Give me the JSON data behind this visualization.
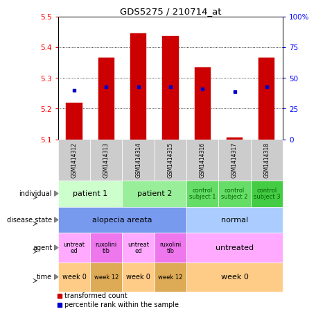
{
  "title": "GDS5275 / 210714_at",
  "samples": [
    "GSM1414312",
    "GSM1414313",
    "GSM1414314",
    "GSM1414315",
    "GSM1414316",
    "GSM1414317",
    "GSM1414318"
  ],
  "bar_bottoms": [
    5.1,
    5.1,
    5.1,
    5.1,
    5.1,
    5.1,
    5.1
  ],
  "bar_tops": [
    5.22,
    5.365,
    5.445,
    5.435,
    5.335,
    5.105,
    5.365
  ],
  "percentile_values": [
    5.26,
    5.27,
    5.27,
    5.27,
    5.265,
    5.255,
    5.27
  ],
  "ylim_left": [
    5.1,
    5.5
  ],
  "ylim_right": [
    0,
    100
  ],
  "yticks_left": [
    5.1,
    5.2,
    5.3,
    5.4,
    5.5
  ],
  "yticks_right": [
    0,
    25,
    50,
    75,
    100
  ],
  "ytick_labels_right": [
    "0",
    "25",
    "50",
    "75",
    "100%"
  ],
  "bar_color": "#cc0000",
  "percentile_color": "#0000cc",
  "annotation_rows": [
    {
      "label": "individual",
      "cells": [
        {
          "text": "patient 1",
          "span": 2,
          "color": "#ccffcc",
          "text_color": "#000000",
          "fontsize": 8
        },
        {
          "text": "patient 2",
          "span": 2,
          "color": "#99ee99",
          "text_color": "#000000",
          "fontsize": 8
        },
        {
          "text": "control\nsubject 1",
          "span": 1,
          "color": "#66dd66",
          "text_color": "#006600",
          "fontsize": 6
        },
        {
          "text": "control\nsubject 2",
          "span": 1,
          "color": "#66dd66",
          "text_color": "#006600",
          "fontsize": 6
        },
        {
          "text": "control\nsubject 3",
          "span": 1,
          "color": "#44cc44",
          "text_color": "#006600",
          "fontsize": 6
        }
      ]
    },
    {
      "label": "disease state",
      "cells": [
        {
          "text": "alopecia areata",
          "span": 4,
          "color": "#7799ee",
          "text_color": "#000000",
          "fontsize": 8
        },
        {
          "text": "normal",
          "span": 3,
          "color": "#aaccff",
          "text_color": "#000000",
          "fontsize": 8
        }
      ]
    },
    {
      "label": "agent",
      "cells": [
        {
          "text": "untreat\ned",
          "span": 1,
          "color": "#ffaaff",
          "text_color": "#000000",
          "fontsize": 6
        },
        {
          "text": "ruxolini\ntib",
          "span": 1,
          "color": "#ee77ee",
          "text_color": "#000000",
          "fontsize": 6
        },
        {
          "text": "untreat\ned",
          "span": 1,
          "color": "#ffaaff",
          "text_color": "#000000",
          "fontsize": 6
        },
        {
          "text": "ruxolini\ntib",
          "span": 1,
          "color": "#ee77ee",
          "text_color": "#000000",
          "fontsize": 6
        },
        {
          "text": "untreated",
          "span": 3,
          "color": "#ffaaff",
          "text_color": "#000000",
          "fontsize": 8
        }
      ]
    },
    {
      "label": "time",
      "cells": [
        {
          "text": "week 0",
          "span": 1,
          "color": "#ffcc88",
          "text_color": "#000000",
          "fontsize": 7
        },
        {
          "text": "week 12",
          "span": 1,
          "color": "#ddaa55",
          "text_color": "#000000",
          "fontsize": 6
        },
        {
          "text": "week 0",
          "span": 1,
          "color": "#ffcc88",
          "text_color": "#000000",
          "fontsize": 7
        },
        {
          "text": "week 12",
          "span": 1,
          "color": "#ddaa55",
          "text_color": "#000000",
          "fontsize": 6
        },
        {
          "text": "week 0",
          "span": 3,
          "color": "#ffcc88",
          "text_color": "#000000",
          "fontsize": 8
        }
      ]
    }
  ],
  "gsm_bg_color": "#cccccc",
  "background_color": "#ffffff"
}
